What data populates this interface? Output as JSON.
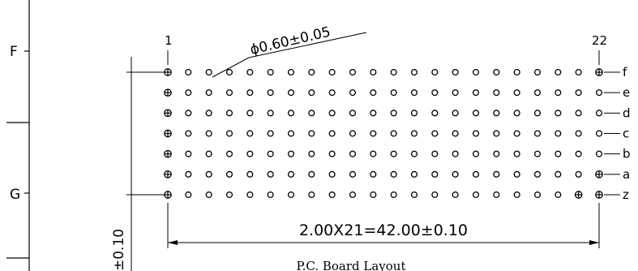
{
  "zone_labels": [
    {
      "id": "F",
      "text": "F"
    },
    {
      "id": "G",
      "text": "G"
    }
  ],
  "pin_numbers": {
    "first": "1",
    "last": "22"
  },
  "hole_diameter": "ϕ0.60±0.05",
  "row_labels": [
    "f",
    "e",
    "d",
    "c",
    "b",
    "a",
    "z"
  ],
  "pitch_dimension": "2.00X21=42.00±0.10",
  "vertical_dimension": "±0.10",
  "caption": "P.C. Board Layout",
  "grid": {
    "columns": 22,
    "rows": 7,
    "padded_holes": [
      {
        "row": "f",
        "columns": [
          1,
          22
        ]
      },
      {
        "row": "e",
        "columns": [
          1
        ]
      },
      {
        "row": "d",
        "columns": [
          1
        ]
      },
      {
        "row": "c",
        "columns": [
          1
        ]
      },
      {
        "row": "b",
        "columns": [
          1
        ]
      },
      {
        "row": "a",
        "columns": [
          1,
          22
        ]
      },
      {
        "row": "z",
        "columns": [
          1,
          21,
          22
        ]
      }
    ]
  }
}
